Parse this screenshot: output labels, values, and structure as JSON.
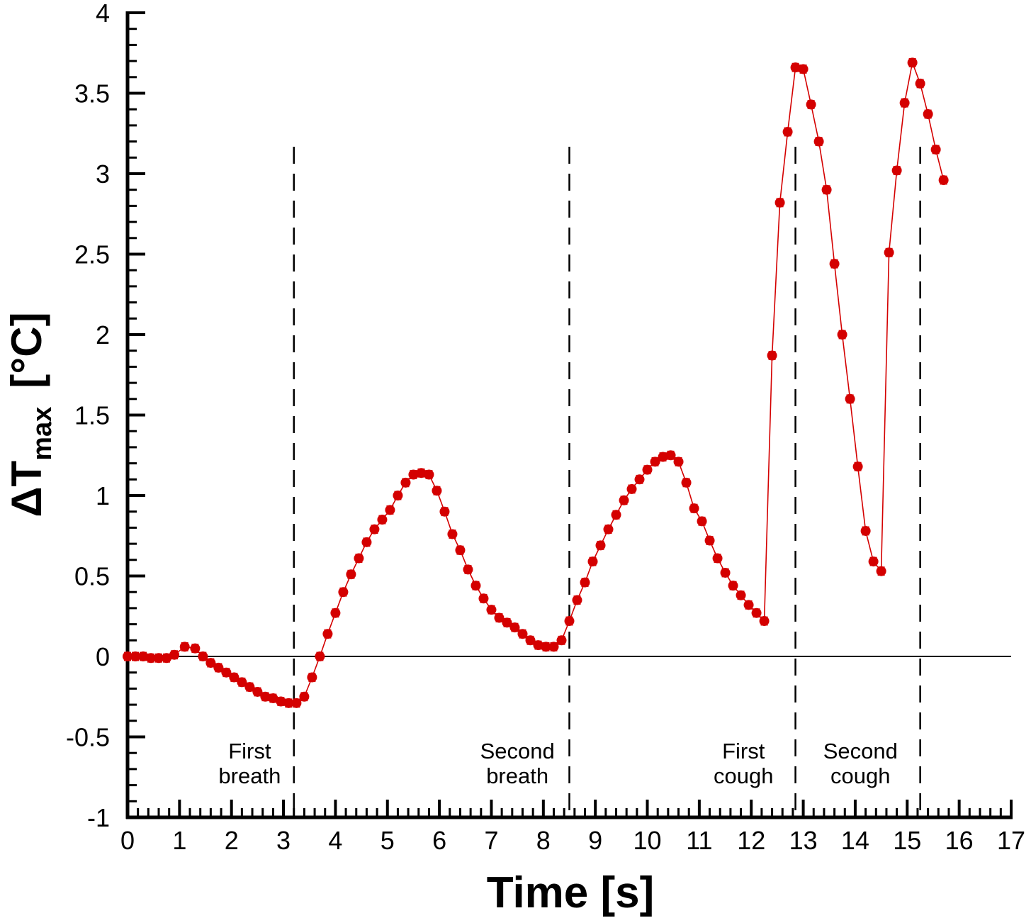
{
  "chart_data": {
    "type": "line",
    "title": "",
    "xlabel": "Time  [s]",
    "ylabel_main": "ΔT",
    "ylabel_sub": "max",
    "ylabel_unit": "[°C]",
    "xlim": [
      0,
      17
    ],
    "ylim": [
      -1,
      4
    ],
    "x_ticks": [
      0,
      1,
      2,
      3,
      4,
      5,
      6,
      7,
      8,
      9,
      10,
      11,
      12,
      13,
      14,
      15,
      16,
      17
    ],
    "x_tick_labels": [
      "0",
      "1",
      "2",
      "3",
      "4",
      "5",
      "6",
      "7",
      "8",
      "9",
      "10",
      "11",
      "12",
      "13",
      "14",
      "15",
      "16",
      "17"
    ],
    "y_ticks": [
      -1,
      -0.5,
      0,
      0.5,
      1,
      1.5,
      2,
      2.5,
      3,
      3.5,
      4
    ],
    "y_tick_labels": [
      "-1",
      "-0.5",
      "0",
      "0.5",
      "1",
      "1.5",
      "2",
      "2.5",
      "3",
      "3.5",
      "4"
    ],
    "zero_line": true,
    "series_color": "#d40000",
    "phase_boundaries": [
      3.2,
      8.5,
      12.85,
      15.25
    ],
    "annotations": [
      {
        "lines": [
          "First",
          "breath"
        ],
        "x": 2.35
      },
      {
        "lines": [
          "Second",
          "breath"
        ],
        "x": 7.5
      },
      {
        "lines": [
          "First",
          "cough"
        ],
        "x": 11.85
      },
      {
        "lines": [
          "Second",
          "cough"
        ],
        "x": 14.1
      }
    ],
    "series": [
      {
        "name": "ΔTmax",
        "error": 0.025,
        "points": [
          [
            0.0,
            0.0
          ],
          [
            0.15,
            0.0
          ],
          [
            0.3,
            0.0
          ],
          [
            0.45,
            -0.01
          ],
          [
            0.6,
            -0.01
          ],
          [
            0.75,
            -0.01
          ],
          [
            0.9,
            0.01
          ],
          [
            1.1,
            0.06
          ],
          [
            1.3,
            0.05
          ],
          [
            1.45,
            0.0
          ],
          [
            1.6,
            -0.04
          ],
          [
            1.75,
            -0.07
          ],
          [
            1.9,
            -0.1
          ],
          [
            2.05,
            -0.13
          ],
          [
            2.2,
            -0.16
          ],
          [
            2.35,
            -0.19
          ],
          [
            2.5,
            -0.22
          ],
          [
            2.65,
            -0.25
          ],
          [
            2.8,
            -0.26
          ],
          [
            2.95,
            -0.28
          ],
          [
            3.1,
            -0.29
          ],
          [
            3.25,
            -0.29
          ],
          [
            3.4,
            -0.25
          ],
          [
            3.55,
            -0.13
          ],
          [
            3.7,
            0.0
          ],
          [
            3.85,
            0.14
          ],
          [
            4.0,
            0.27
          ],
          [
            4.15,
            0.4
          ],
          [
            4.3,
            0.51
          ],
          [
            4.45,
            0.61
          ],
          [
            4.6,
            0.71
          ],
          [
            4.75,
            0.79
          ],
          [
            4.9,
            0.85
          ],
          [
            5.05,
            0.91
          ],
          [
            5.2,
            1.0
          ],
          [
            5.35,
            1.08
          ],
          [
            5.5,
            1.13
          ],
          [
            5.65,
            1.14
          ],
          [
            5.8,
            1.13
          ],
          [
            5.95,
            1.03
          ],
          [
            6.1,
            0.9
          ],
          [
            6.25,
            0.76
          ],
          [
            6.4,
            0.66
          ],
          [
            6.55,
            0.54
          ],
          [
            6.7,
            0.44
          ],
          [
            6.85,
            0.36
          ],
          [
            7.0,
            0.29
          ],
          [
            7.15,
            0.24
          ],
          [
            7.3,
            0.21
          ],
          [
            7.45,
            0.18
          ],
          [
            7.6,
            0.14
          ],
          [
            7.75,
            0.1
          ],
          [
            7.9,
            0.07
          ],
          [
            8.05,
            0.06
          ],
          [
            8.2,
            0.06
          ],
          [
            8.35,
            0.1
          ],
          [
            8.5,
            0.22
          ],
          [
            8.65,
            0.35
          ],
          [
            8.8,
            0.46
          ],
          [
            8.95,
            0.59
          ],
          [
            9.1,
            0.69
          ],
          [
            9.25,
            0.79
          ],
          [
            9.4,
            0.88
          ],
          [
            9.55,
            0.97
          ],
          [
            9.7,
            1.04
          ],
          [
            9.85,
            1.1
          ],
          [
            10.0,
            1.16
          ],
          [
            10.15,
            1.21
          ],
          [
            10.3,
            1.24
          ],
          [
            10.45,
            1.25
          ],
          [
            10.6,
            1.21
          ],
          [
            10.75,
            1.08
          ],
          [
            10.9,
            0.92
          ],
          [
            11.05,
            0.84
          ],
          [
            11.2,
            0.72
          ],
          [
            11.35,
            0.61
          ],
          [
            11.5,
            0.52
          ],
          [
            11.65,
            0.44
          ],
          [
            11.8,
            0.38
          ],
          [
            11.95,
            0.32
          ],
          [
            12.1,
            0.27
          ],
          [
            12.25,
            0.22
          ],
          [
            12.4,
            1.87
          ],
          [
            12.55,
            2.82
          ],
          [
            12.7,
            3.26
          ],
          [
            12.85,
            3.66
          ],
          [
            13.0,
            3.65
          ],
          [
            13.15,
            3.43
          ],
          [
            13.3,
            3.2
          ],
          [
            13.45,
            2.9
          ],
          [
            13.6,
            2.44
          ],
          [
            13.75,
            2.0
          ],
          [
            13.9,
            1.6
          ],
          [
            14.05,
            1.18
          ],
          [
            14.2,
            0.78
          ],
          [
            14.35,
            0.59
          ],
          [
            14.5,
            0.53
          ],
          [
            14.65,
            2.51
          ],
          [
            14.8,
            3.02
          ],
          [
            14.95,
            3.44
          ],
          [
            15.1,
            3.69
          ],
          [
            15.25,
            3.56
          ],
          [
            15.4,
            3.37
          ],
          [
            15.55,
            3.15
          ],
          [
            15.7,
            2.96
          ]
        ]
      }
    ]
  }
}
